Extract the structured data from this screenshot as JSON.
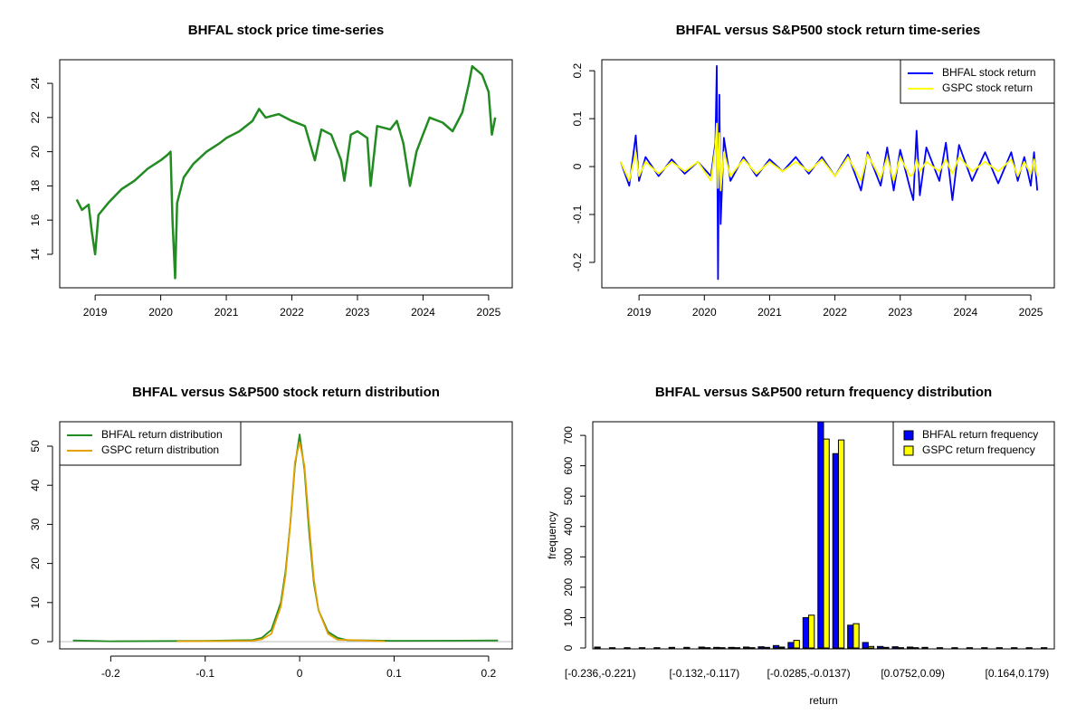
{
  "chart_data": [
    {
      "type": "line",
      "title": "BHFAL stock price time-series",
      "x": [
        2018.72,
        2018.8,
        2018.9,
        2018.95,
        2019.0,
        2019.05,
        2019.2,
        2019.4,
        2019.6,
        2019.8,
        2020.0,
        2020.1,
        2020.15,
        2020.18,
        2020.22,
        2020.25,
        2020.35,
        2020.5,
        2020.7,
        2020.9,
        2021.0,
        2021.2,
        2021.4,
        2021.5,
        2021.6,
        2021.8,
        2022.0,
        2022.2,
        2022.35,
        2022.45,
        2022.6,
        2022.75,
        2022.8,
        2022.9,
        2023.0,
        2023.15,
        2023.2,
        2023.3,
        2023.5,
        2023.6,
        2023.7,
        2023.8,
        2023.9,
        2024.0,
        2024.1,
        2024.3,
        2024.45,
        2024.6,
        2024.7,
        2024.75,
        2024.9,
        2025.0,
        2025.05,
        2025.1
      ],
      "series": [
        {
          "color": "#228b22",
          "values": [
            17.2,
            16.6,
            16.9,
            15.3,
            14.0,
            16.3,
            17.0,
            17.8,
            18.3,
            19.0,
            19.5,
            19.8,
            20.0,
            16.0,
            12.6,
            17.0,
            18.5,
            19.3,
            20.0,
            20.5,
            20.8,
            21.2,
            21.8,
            22.5,
            22.0,
            22.2,
            21.8,
            21.5,
            19.5,
            21.3,
            21.0,
            19.5,
            18.3,
            21.0,
            21.2,
            20.8,
            18.0,
            21.5,
            21.3,
            21.8,
            20.5,
            18.0,
            20.0,
            21.0,
            22.0,
            21.7,
            21.2,
            22.3,
            24.0,
            25.0,
            24.5,
            23.5,
            21.0,
            22.0
          ]
        }
      ],
      "xlim": [
        2018.46,
        2025.36
      ],
      "xticks": [
        2019,
        2020,
        2021,
        2022,
        2023,
        2024,
        2025
      ],
      "ylim": [
        12.04,
        25.38
      ],
      "yticks": [
        14,
        16,
        18,
        20,
        22,
        24
      ]
    },
    {
      "type": "line",
      "title": "BHFAL versus S&P500 stock return time-series",
      "legend": "topright",
      "x": [
        2018.72,
        2018.85,
        2018.95,
        2019.0,
        2019.1,
        2019.3,
        2019.5,
        2019.7,
        2019.9,
        2020.1,
        2020.17,
        2020.19,
        2020.21,
        2020.23,
        2020.25,
        2020.3,
        2020.4,
        2020.6,
        2020.8,
        2021.0,
        2021.2,
        2021.4,
        2021.6,
        2021.8,
        2022.0,
        2022.2,
        2022.4,
        2022.5,
        2022.7,
        2022.8,
        2022.9,
        2023.0,
        2023.15,
        2023.2,
        2023.25,
        2023.3,
        2023.4,
        2023.6,
        2023.7,
        2023.8,
        2023.9,
        2024.1,
        2024.3,
        2024.5,
        2024.7,
        2024.8,
        2024.9,
        2025.0,
        2025.05,
        2025.1
      ],
      "series": [
        {
          "name": "BHFAL stock return",
          "color": "#0000ff",
          "values": [
            0.01,
            -0.04,
            0.065,
            -0.03,
            0.02,
            -0.02,
            0.015,
            -0.015,
            0.01,
            -0.02,
            0.05,
            0.21,
            -0.235,
            0.15,
            -0.12,
            0.06,
            -0.03,
            0.02,
            -0.02,
            0.015,
            -0.01,
            0.02,
            -0.015,
            0.02,
            -0.02,
            0.025,
            -0.05,
            0.03,
            -0.04,
            0.04,
            -0.05,
            0.035,
            -0.045,
            -0.07,
            0.075,
            -0.06,
            0.04,
            -0.03,
            0.05,
            -0.07,
            0.045,
            -0.03,
            0.03,
            -0.035,
            0.03,
            -0.03,
            0.02,
            -0.04,
            0.03,
            -0.05
          ]
        },
        {
          "name": "GSPC stock return",
          "color": "#ffff00",
          "values": [
            0.01,
            -0.03,
            0.03,
            -0.02,
            0.01,
            -0.015,
            0.01,
            -0.01,
            0.01,
            -0.03,
            0.04,
            0.09,
            -0.045,
            0.07,
            -0.05,
            0.03,
            -0.02,
            0.015,
            -0.015,
            0.01,
            -0.01,
            0.01,
            -0.01,
            0.015,
            -0.02,
            0.02,
            -0.03,
            0.025,
            -0.025,
            0.02,
            -0.03,
            0.02,
            -0.02,
            -0.015,
            0.015,
            -0.01,
            0.01,
            -0.01,
            0.015,
            -0.015,
            0.02,
            -0.01,
            0.01,
            -0.01,
            0.015,
            -0.02,
            0.01,
            -0.015,
            0.015,
            -0.02
          ]
        }
      ],
      "xlim": [
        2018.43,
        2025.36
      ],
      "xticks": [
        2019,
        2020,
        2021,
        2022,
        2023,
        2024,
        2025
      ],
      "ylim": [
        -0.253,
        0.223
      ],
      "yticks": [
        -0.2,
        -0.1,
        0.0,
        0.1,
        0.2
      ]
    },
    {
      "type": "line",
      "title": "BHFAL versus S&P500 stock return distribution",
      "legend": "topleft",
      "hline": 0,
      "series": [
        {
          "name": "BHFAL return distribution",
          "color": "#228b22",
          "x": [
            -0.24,
            -0.2,
            -0.1,
            -0.05,
            -0.04,
            -0.03,
            -0.02,
            -0.015,
            -0.01,
            -0.005,
            0,
            0.005,
            0.01,
            0.015,
            0.02,
            0.03,
            0.04,
            0.05,
            0.1,
            0.21
          ],
          "values": [
            0.3,
            0.1,
            0.2,
            0.4,
            1,
            3,
            10,
            18,
            30,
            45,
            53,
            44,
            28,
            15,
            8,
            2.5,
            1,
            0.4,
            0.2,
            0.3
          ]
        },
        {
          "name": "GSPC return distribution",
          "color": "#e5a000",
          "x": [
            -0.13,
            -0.05,
            -0.04,
            -0.03,
            -0.02,
            -0.015,
            -0.01,
            -0.005,
            0,
            0.005,
            0.01,
            0.015,
            0.02,
            0.03,
            0.04,
            0.09
          ],
          "values": [
            0.1,
            0.2,
            0.6,
            2,
            9,
            17,
            30,
            46,
            51,
            45,
            30,
            16,
            8,
            2,
            0.5,
            0.1
          ]
        }
      ],
      "xlim": [
        -0.254,
        0.225
      ],
      "xticks": [
        -0.2,
        -0.1,
        0.0,
        0.1,
        0.2
      ],
      "ylim": [
        -1.85,
        56.25
      ],
      "yticks": [
        0,
        10,
        20,
        30,
        40,
        50
      ]
    },
    {
      "type": "bar",
      "title": "BHFAL versus S&P500 return frequency distribution",
      "legend": "topright",
      "xlabel": "return",
      "ylabel": "frequency",
      "categories": [
        "[-0.236,-0.221)",
        null,
        null,
        null,
        null,
        null,
        null,
        "[-0.132,-0.117)",
        null,
        null,
        null,
        null,
        null,
        null,
        "[-0.0285,-0.0137)",
        null,
        null,
        null,
        null,
        null,
        null,
        "[0.0752,0.09)",
        null,
        null,
        null,
        null,
        null,
        null,
        "[0.164,0.179)",
        null,
        null
      ],
      "series": [
        {
          "name": "BHFAL return frequency",
          "color": "#0000ff",
          "values": [
            3,
            1,
            1,
            1,
            1,
            2,
            2,
            3,
            2,
            2,
            3,
            4,
            8,
            18,
            100,
            745,
            640,
            75,
            18,
            5,
            4,
            3,
            2,
            1,
            1,
            1,
            1,
            1,
            1,
            1,
            1
          ]
        },
        {
          "name": "GSPC return frequency",
          "color": "#ffff00",
          "values": [
            0,
            0,
            0,
            0,
            0,
            0,
            0,
            1,
            1,
            1,
            1,
            2,
            3,
            25,
            108,
            688,
            685,
            80,
            5,
            2,
            1,
            1,
            0,
            0,
            0,
            0,
            0,
            0,
            0,
            0,
            0
          ]
        }
      ],
      "ylim": [
        -3,
        745
      ],
      "yticks": [
        0,
        100,
        200,
        300,
        400,
        500,
        600,
        700
      ]
    }
  ]
}
